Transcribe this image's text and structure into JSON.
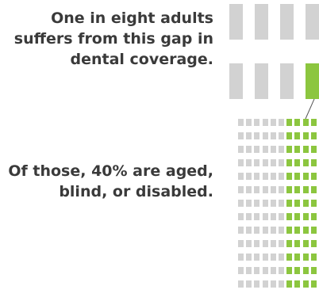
{
  "captions": {
    "top": "One in eight adults suffers from this gap in dental coverage.",
    "bottom": "Of those, 40% are aged, blind, or disabled."
  },
  "top_units": {
    "total": 8,
    "highlighted": 1
  },
  "bottom_units": {
    "rows": 13,
    "cols": 10,
    "highlighted_fraction": 0.4
  },
  "colors": {
    "gray": "#d2d2d2",
    "green": "#8cc63f",
    "text": "#3a3a3a",
    "line": "#555555"
  }
}
